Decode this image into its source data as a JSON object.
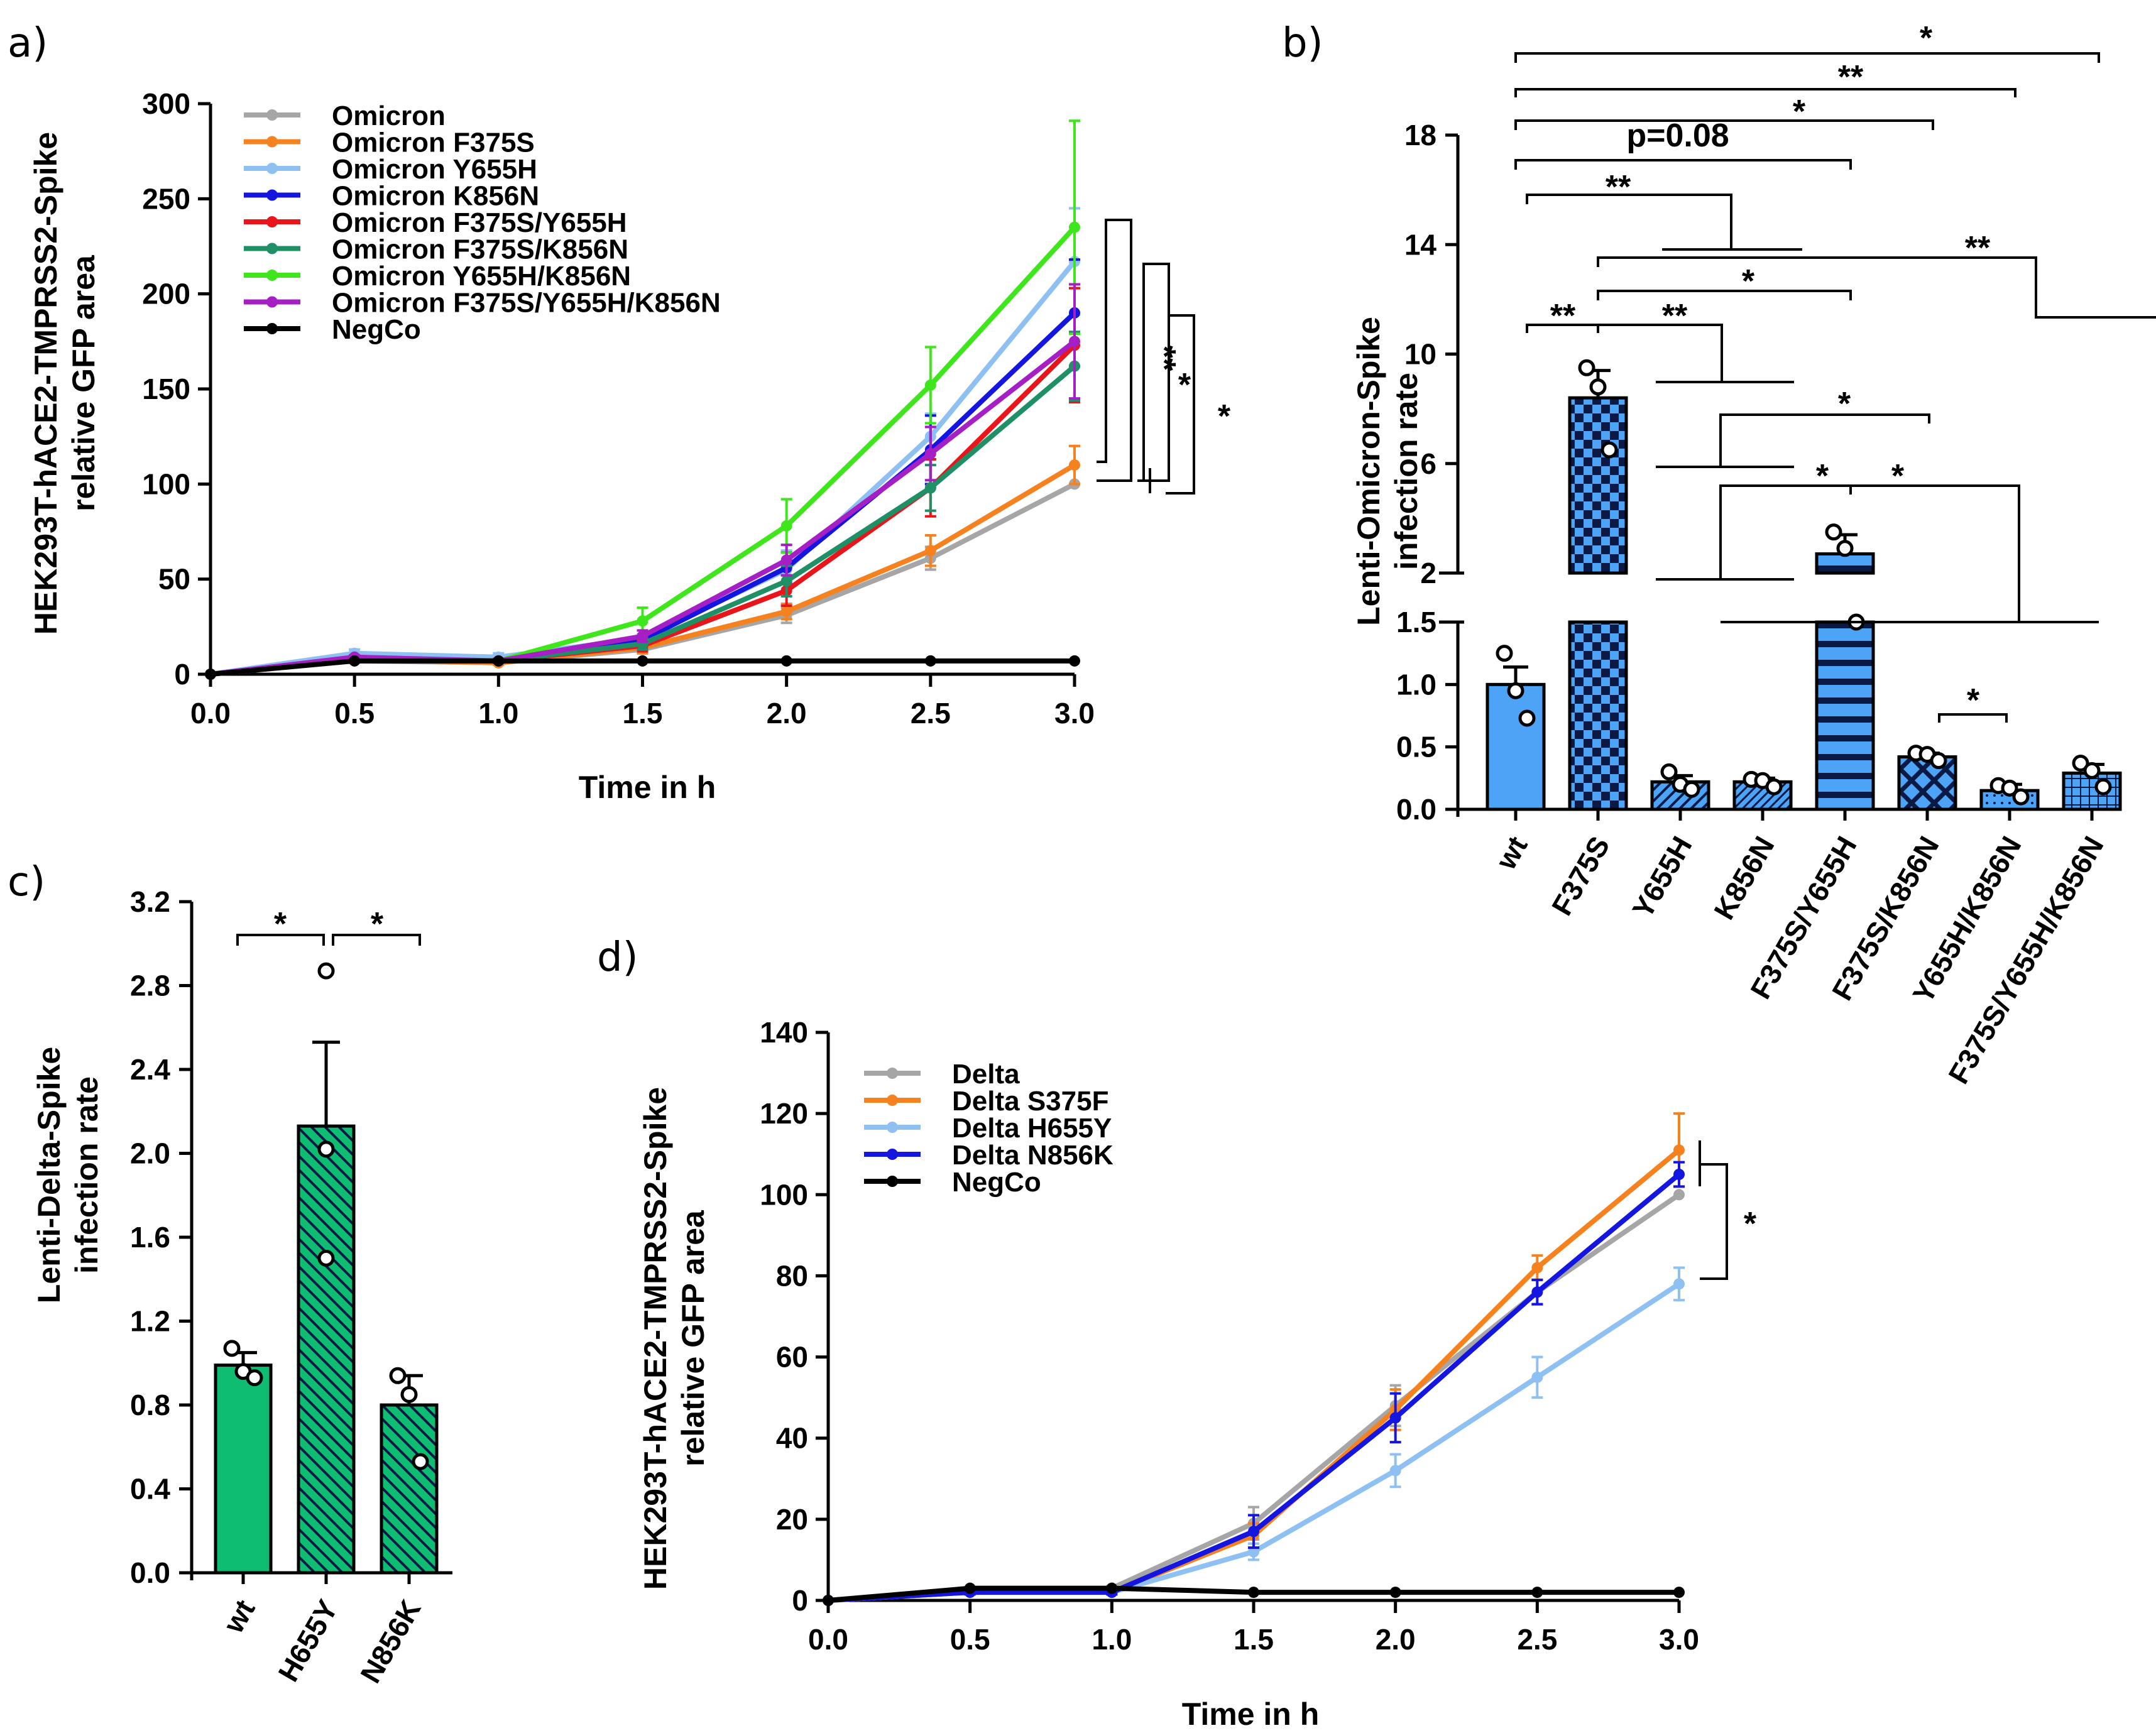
{
  "chart_data": [
    {
      "id": "a",
      "type": "line",
      "panel_label": "a)",
      "xlabel": "Time in h",
      "ylabel_lines": [
        "HEK293T-hACE2-TMPRSS2-Spike",
        "relative GFP area"
      ],
      "xlim": [
        0,
        3
      ],
      "ylim": [
        0,
        300
      ],
      "x_ticks": [
        "0.0",
        "0.5",
        "1.0",
        "1.5",
        "2.0",
        "2.5",
        "3.0"
      ],
      "y_ticks": [
        "0",
        "50",
        "100",
        "150",
        "200",
        "250",
        "300"
      ],
      "x": [
        0,
        0.5,
        1,
        1.5,
        2,
        2.5,
        3
      ],
      "legend_position": "top-left",
      "series": [
        {
          "name": "Omicron",
          "color": "#a6a6a6",
          "values": [
            0,
            7,
            6,
            13,
            31,
            61,
            100
          ],
          "errors": [
            0,
            1,
            1,
            2,
            4,
            6,
            0
          ]
        },
        {
          "name": "Omicron F375S",
          "color": "#f5821f",
          "values": [
            0,
            8,
            6,
            14,
            33,
            65,
            110
          ],
          "errors": [
            0,
            1,
            1,
            3,
            4,
            8,
            10
          ]
        },
        {
          "name": "Omicron Y655H",
          "color": "#8ec0f2",
          "values": [
            0,
            11,
            9,
            19,
            55,
            125,
            217
          ],
          "errors": [
            0,
            2,
            2,
            4,
            10,
            12,
            28
          ]
        },
        {
          "name": "Omicron K856N",
          "color": "#1515e0",
          "values": [
            0,
            8,
            7,
            18,
            56,
            118,
            190
          ],
          "errors": [
            0,
            1,
            1,
            3,
            8,
            18,
            28
          ]
        },
        {
          "name": "Omicron F375S/Y655H",
          "color": "#e8151b",
          "values": [
            0,
            8,
            7,
            15,
            44,
            98,
            173
          ],
          "errors": [
            0,
            1,
            1,
            3,
            8,
            15,
            30
          ]
        },
        {
          "name": "Omicron F375S/K856N",
          "color": "#1f8f66",
          "values": [
            0,
            8,
            7,
            16,
            49,
            98,
            162
          ],
          "errors": [
            0,
            1,
            1,
            3,
            8,
            12,
            18
          ]
        },
        {
          "name": "Omicron Y655H/K856N",
          "color": "#3ee61b",
          "values": [
            0,
            8,
            7,
            28,
            78,
            152,
            235
          ],
          "errors": [
            0,
            1,
            1,
            7,
            14,
            20,
            56
          ]
        },
        {
          "name": "Omicron F375S/Y655H/K856N",
          "color": "#a51fc4",
          "values": [
            0,
            9,
            7,
            20,
            60,
            116,
            175
          ],
          "errors": [
            0,
            1,
            1,
            3,
            8,
            14,
            30
          ]
        },
        {
          "name": "NegCo",
          "color": "#000000",
          "values": [
            0,
            7,
            7,
            7,
            7,
            7,
            7
          ],
          "errors": [
            0,
            0,
            0,
            0,
            0,
            0,
            0
          ]
        }
      ],
      "significance": [
        "**",
        "*",
        "*"
      ]
    },
    {
      "id": "b",
      "type": "bar",
      "panel_label": "b)",
      "ylabel_lines": [
        "Lenti-Omicron-Spike",
        "infection rate"
      ],
      "categories": [
        "wt",
        "F375S",
        "Y655H",
        "K856N",
        "F375S/Y655H",
        "F375S/K856N",
        "Y655H/K856N",
        "F375S/Y655H/K856N"
      ],
      "values": [
        1.0,
        8.4,
        0.22,
        0.22,
        2.7,
        0.42,
        0.15,
        0.29
      ],
      "errors": [
        0.14,
        1.0,
        0.05,
        0.03,
        0.7,
        0.03,
        0.05,
        0.07
      ],
      "points": [
        [
          1.25,
          0.95,
          0.73
        ],
        [
          9.5,
          8.8,
          6.5
        ],
        [
          0.3,
          0.2,
          0.16
        ],
        [
          0.24,
          0.23,
          0.18
        ],
        [
          3.5,
          2.9,
          1.5
        ],
        [
          0.45,
          0.44,
          0.39
        ],
        [
          0.19,
          0.17,
          0.1
        ],
        [
          0.37,
          0.31,
          0.18
        ]
      ],
      "bar_color": "#4da3f5",
      "y_ticks_low": [
        "0.0",
        "0.5",
        "1.0",
        "1.5"
      ],
      "y_ticks_high": [
        "2",
        "6",
        "10",
        "14",
        "18"
      ],
      "ylim_low": [
        0,
        1.5
      ],
      "ylim_high": [
        2,
        18
      ],
      "significance": [
        "*",
        "**",
        "*",
        "p=0.08",
        "**",
        "**",
        "*",
        "**",
        "**",
        "*",
        "*",
        "*",
        "*"
      ]
    },
    {
      "id": "c",
      "type": "bar",
      "panel_label": "c)",
      "ylabel_lines": [
        "Lenti-Delta-Spike",
        "infection rate"
      ],
      "categories": [
        "wt",
        "H655Y",
        "N856K"
      ],
      "values": [
        0.99,
        2.13,
        0.8
      ],
      "errors": [
        0.06,
        0.4,
        0.14
      ],
      "points": [
        [
          1.07,
          0.96,
          0.93
        ],
        [
          2.87,
          2.02,
          1.5
        ],
        [
          0.94,
          0.85,
          0.53
        ]
      ],
      "bar_color": "#0fbd72",
      "ylim": [
        0,
        3.2
      ],
      "y_ticks": [
        "0.0",
        "0.4",
        "0.8",
        "1.2",
        "1.6",
        "2.0",
        "2.4",
        "2.8",
        "3.2"
      ],
      "significance": [
        "*",
        "*"
      ]
    },
    {
      "id": "d",
      "type": "line",
      "panel_label": "d)",
      "xlabel": "Time in h",
      "ylabel_lines": [
        "HEK293T-hACE2-TMPRSS2-Spike",
        "relative GFP area"
      ],
      "xlim": [
        0,
        3
      ],
      "ylim": [
        0,
        140
      ],
      "x_ticks": [
        "0.0",
        "0.5",
        "1.0",
        "1.5",
        "2.0",
        "2.5",
        "3.0"
      ],
      "y_ticks": [
        "0",
        "20",
        "40",
        "60",
        "80",
        "100",
        "120",
        "140"
      ],
      "x": [
        0,
        0.5,
        1,
        1.5,
        2,
        2.5,
        3
      ],
      "legend_position": "top-left",
      "series": [
        {
          "name": "Delta",
          "color": "#a6a6a6",
          "values": [
            0,
            2,
            3,
            19,
            48,
            76,
            100
          ],
          "errors": [
            0,
            0.5,
            0.5,
            4,
            5,
            3,
            0
          ]
        },
        {
          "name": "Delta S375F",
          "color": "#f5821f",
          "values": [
            0,
            2,
            2,
            16,
            47,
            82,
            111
          ],
          "errors": [
            0,
            0.5,
            0.5,
            3,
            5,
            3,
            9
          ]
        },
        {
          "name": "Delta H655Y",
          "color": "#8ec0f2",
          "values": [
            0,
            2,
            2,
            12,
            32,
            55,
            78
          ],
          "errors": [
            0,
            0.5,
            0.5,
            2,
            4,
            5,
            4
          ]
        },
        {
          "name": "Delta N856K",
          "color": "#1515e0",
          "values": [
            0,
            2,
            2,
            17,
            45,
            76,
            105
          ],
          "errors": [
            0,
            0.5,
            0.5,
            4,
            6,
            3,
            3
          ]
        },
        {
          "name": "NegCo",
          "color": "#000000",
          "values": [
            0,
            3,
            3,
            2,
            2,
            2,
            2
          ],
          "errors": [
            0,
            0,
            0,
            0,
            0,
            0,
            0
          ]
        }
      ],
      "significance": [
        "*"
      ]
    }
  ]
}
